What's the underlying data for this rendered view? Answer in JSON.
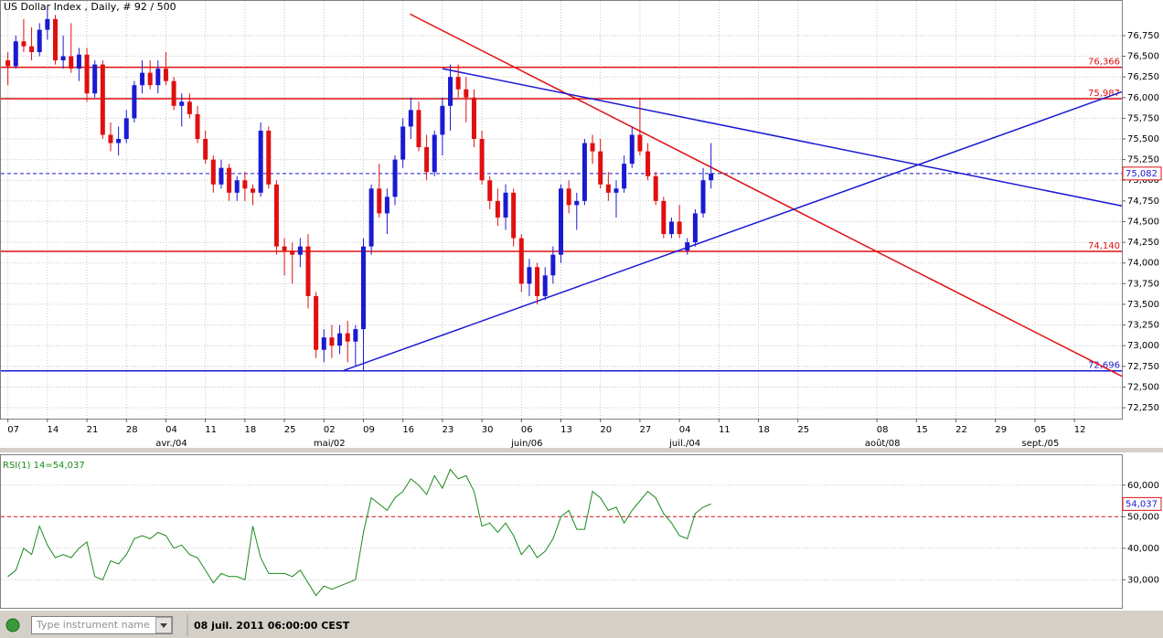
{
  "chart_data": [
    {
      "type": "candlestick",
      "title": "US Dollar Index , Daily, # 92 / 500",
      "up_color": "#1a1ad2",
      "down_color": "#e01010",
      "open": [
        76.45,
        76.38,
        76.68,
        76.62,
        76.55,
        76.82,
        76.95,
        76.45,
        76.5,
        76.35,
        76.52,
        76.05,
        76.4,
        75.55,
        75.45,
        75.5,
        75.75,
        76.15,
        76.3,
        76.15,
        76.35,
        76.2,
        75.9,
        75.95,
        75.8,
        75.5,
        75.25,
        74.95,
        75.15,
        74.85,
        75.0,
        74.9,
        74.85,
        75.6,
        74.95,
        74.2,
        74.15,
        74.1,
        74.2,
        73.6,
        72.95,
        73.1,
        73.0,
        73.15,
        73.05,
        73.2,
        74.2,
        74.9,
        74.6,
        74.8,
        75.25,
        75.65,
        75.85,
        75.4,
        75.1,
        75.55,
        75.9,
        76.25,
        76.1,
        76.0,
        75.5,
        75.0,
        74.75,
        74.55,
        74.85,
        74.3,
        73.75,
        73.95,
        73.6,
        73.85,
        74.1,
        74.9,
        74.7,
        74.75,
        75.45,
        75.35,
        74.95,
        74.85,
        74.9,
        75.2,
        75.55,
        75.35,
        75.05,
        74.75,
        74.35,
        74.5,
        74.15,
        74.25,
        74.6,
        75.0
      ],
      "high": [
        76.55,
        76.75,
        76.95,
        76.85,
        76.9,
        77.1,
        77.0,
        76.75,
        76.9,
        76.6,
        76.6,
        76.45,
        76.45,
        75.7,
        75.65,
        75.85,
        76.2,
        76.45,
        76.45,
        76.45,
        76.55,
        76.25,
        76.05,
        76.05,
        75.9,
        75.6,
        75.3,
        75.25,
        75.2,
        75.05,
        75.1,
        74.95,
        75.7,
        75.65,
        75.0,
        74.3,
        74.25,
        74.3,
        74.35,
        73.65,
        73.2,
        73.25,
        73.25,
        73.3,
        73.25,
        74.3,
        74.95,
        75.2,
        74.9,
        75.3,
        75.75,
        76.0,
        75.95,
        75.55,
        75.6,
        76.0,
        76.4,
        76.4,
        76.25,
        76.1,
        75.6,
        75.05,
        74.9,
        74.95,
        74.9,
        74.35,
        74.05,
        74.0,
        73.95,
        74.2,
        74.95,
        75.0,
        74.85,
        75.5,
        75.55,
        75.5,
        75.1,
        75.0,
        75.3,
        75.65,
        76.0,
        75.45,
        75.1,
        74.8,
        74.55,
        74.7,
        74.3,
        74.65,
        75.15,
        75.45
      ],
      "low": [
        76.15,
        76.35,
        76.55,
        76.45,
        76.5,
        76.7,
        76.4,
        76.35,
        76.3,
        76.2,
        75.95,
        76.0,
        75.5,
        75.35,
        75.3,
        75.45,
        75.7,
        76.05,
        76.1,
        76.05,
        76.15,
        75.85,
        75.65,
        75.75,
        75.45,
        75.2,
        74.85,
        74.9,
        74.75,
        74.75,
        74.75,
        74.7,
        74.8,
        74.9,
        74.1,
        73.85,
        73.75,
        73.95,
        73.45,
        72.85,
        72.8,
        72.85,
        72.9,
        72.8,
        72.75,
        72.7,
        74.1,
        74.55,
        74.35,
        74.7,
        75.15,
        75.5,
        75.35,
        75.0,
        75.05,
        75.3,
        75.6,
        76.0,
        75.7,
        75.4,
        74.95,
        74.65,
        74.45,
        74.4,
        74.2,
        73.65,
        73.6,
        73.5,
        73.55,
        73.75,
        74.0,
        74.6,
        74.4,
        74.7,
        75.2,
        74.9,
        74.75,
        74.55,
        74.85,
        75.15,
        75.3,
        75.0,
        74.7,
        74.3,
        74.3,
        74.3,
        74.1,
        74.2,
        74.55,
        74.9
      ],
      "close": [
        76.38,
        76.68,
        76.62,
        76.55,
        76.82,
        76.95,
        76.45,
        76.5,
        76.35,
        76.52,
        76.05,
        76.4,
        75.55,
        75.45,
        75.5,
        75.75,
        76.15,
        76.3,
        76.15,
        76.35,
        76.2,
        75.9,
        75.95,
        75.8,
        75.5,
        75.25,
        74.95,
        75.15,
        74.85,
        75.0,
        74.9,
        74.85,
        75.6,
        74.95,
        74.2,
        74.15,
        74.1,
        74.2,
        73.6,
        72.95,
        73.1,
        73.0,
        73.15,
        73.05,
        73.2,
        74.2,
        74.9,
        74.6,
        74.8,
        75.25,
        75.65,
        75.85,
        75.4,
        75.1,
        75.55,
        75.9,
        76.25,
        76.1,
        76.0,
        75.5,
        75.0,
        74.75,
        74.55,
        74.85,
        74.3,
        73.75,
        73.95,
        73.6,
        73.85,
        74.1,
        74.9,
        74.7,
        74.75,
        75.45,
        75.35,
        74.95,
        74.85,
        74.9,
        75.2,
        75.55,
        75.35,
        75.05,
        74.75,
        74.35,
        74.5,
        74.35,
        74.25,
        74.6,
        75.0,
        75.082
      ],
      "xlim": [
        -1,
        141
      ],
      "xticks": [
        {
          "value": 0,
          "label": "07"
        },
        {
          "value": 5,
          "label": "14"
        },
        {
          "value": 10,
          "label": "21"
        },
        {
          "value": 15,
          "label": "28"
        },
        {
          "value": 20,
          "label": "04"
        },
        {
          "value": 25,
          "label": "11"
        },
        {
          "value": 30,
          "label": "18"
        },
        {
          "value": 35,
          "label": "25"
        },
        {
          "value": 40,
          "label": "02"
        },
        {
          "value": 45,
          "label": "09"
        },
        {
          "value": 50,
          "label": "16"
        },
        {
          "value": 55,
          "label": "23"
        },
        {
          "value": 60,
          "label": "30"
        },
        {
          "value": 65,
          "label": "06"
        },
        {
          "value": 70,
          "label": "13"
        },
        {
          "value": 75,
          "label": "20"
        },
        {
          "value": 80,
          "label": "27"
        },
        {
          "value": 85,
          "label": "04"
        },
        {
          "value": 90,
          "label": "11"
        },
        {
          "value": 95,
          "label": "18"
        },
        {
          "value": 100,
          "label": "25"
        },
        {
          "value": 110,
          "label": "08"
        },
        {
          "value": 115,
          "label": "15"
        },
        {
          "value": 120,
          "label": "22"
        },
        {
          "value": 125,
          "label": "29"
        },
        {
          "value": 130,
          "label": "05"
        },
        {
          "value": 135,
          "label": "12"
        }
      ],
      "month_ticks": [
        {
          "value": 20,
          "label": "avr./04"
        },
        {
          "value": 40,
          "label": "mai/02"
        },
        {
          "value": 65,
          "label": "juin/06"
        },
        {
          "value": 85,
          "label": "juil./04"
        },
        {
          "value": 110,
          "label": "août/08"
        },
        {
          "value": 130,
          "label": "sept./05"
        }
      ],
      "ylim": [
        72.118,
        77.169
      ],
      "yticks": [
        {
          "value": 72.25,
          "label": "72,250"
        },
        {
          "value": 72.5,
          "label": "72,500"
        },
        {
          "value": 72.75,
          "label": "72,750"
        },
        {
          "value": 73.0,
          "label": "73,000"
        },
        {
          "value": 73.25,
          "label": "73,250"
        },
        {
          "value": 73.5,
          "label": "73,500"
        },
        {
          "value": 73.75,
          "label": "73,750"
        },
        {
          "value": 74.0,
          "label": "74,000"
        },
        {
          "value": 74.25,
          "label": "74,250"
        },
        {
          "value": 74.5,
          "label": "74,500"
        },
        {
          "value": 74.75,
          "label": "74,750"
        },
        {
          "value": 75.0,
          "label": "75,000"
        },
        {
          "value": 75.25,
          "label": "75,250"
        },
        {
          "value": 75.5,
          "label": "75,500"
        },
        {
          "value": 75.75,
          "label": "75,750"
        },
        {
          "value": 76.0,
          "label": "76,000"
        },
        {
          "value": 76.25,
          "label": "76,250"
        },
        {
          "value": 76.5,
          "label": "76,500"
        },
        {
          "value": 76.75,
          "label": "76,750"
        }
      ],
      "grid": true,
      "levels": [
        {
          "value": 76.366,
          "label": "76,366",
          "color": "#e01010"
        },
        {
          "value": 75.987,
          "label": "75,987",
          "color": "#e01010"
        },
        {
          "value": 74.14,
          "label": "74,140",
          "color": "#e01010"
        },
        {
          "value": 72.696,
          "label": "72,696",
          "color": "#1a1ad2"
        }
      ],
      "last_price": {
        "value": 75.082,
        "label": "75,082",
        "color": "#1a1ad2"
      },
      "trendlines": [
        {
          "color": "#e01010",
          "x": [
            50.9,
            141
          ],
          "y": [
            77.01,
            72.63
          ]
        },
        {
          "color": "#1a1ad2",
          "x": [
            55,
            141
          ],
          "y": [
            76.35,
            74.69
          ]
        },
        {
          "color": "#1a1ad2",
          "x": [
            42.5,
            141
          ],
          "y": [
            72.7,
            76.07
          ]
        }
      ]
    },
    {
      "type": "line",
      "title": "RSI(1) 14=54,037",
      "color": "#1a8a1a",
      "values": [
        31,
        33,
        40,
        38,
        47,
        41,
        37,
        38,
        37,
        40,
        42,
        31,
        30,
        36,
        35,
        38,
        43,
        44,
        43,
        45,
        44,
        40,
        41,
        38,
        37,
        33,
        29,
        32,
        31,
        31,
        30,
        47,
        37,
        32,
        32,
        32,
        31,
        33,
        29,
        25,
        28,
        27,
        28,
        29,
        30,
        45,
        56,
        54,
        52,
        56,
        58,
        62,
        60,
        57,
        63,
        59,
        65,
        62,
        63,
        58,
        47,
        48,
        45,
        48,
        44,
        38,
        41,
        37,
        39,
        43,
        50,
        52,
        46,
        46,
        58,
        56,
        52,
        53,
        48,
        52,
        55,
        58,
        56,
        51,
        48,
        44,
        43,
        51,
        53,
        54.037
      ],
      "last_label": "54,037",
      "xlim": [
        -1,
        141
      ],
      "ylim": [
        21.1,
        69.5
      ],
      "yticks": [
        {
          "value": 30,
          "label": "30,000"
        },
        {
          "value": 40,
          "label": "40,000"
        },
        {
          "value": 50,
          "label": "50,000"
        },
        {
          "value": 60,
          "label": "60,000"
        }
      ],
      "level": 50,
      "level_color": "#e01010",
      "grid": true
    }
  ],
  "status": {
    "input_placeholder": "Type instrument name",
    "datetime": "08 juil. 2011 06:00:00 CEST"
  }
}
